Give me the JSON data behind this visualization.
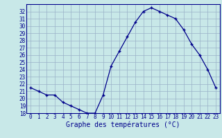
{
  "hours": [
    0,
    1,
    2,
    3,
    4,
    5,
    6,
    7,
    8,
    9,
    10,
    11,
    12,
    13,
    14,
    15,
    16,
    17,
    18,
    19,
    20,
    21,
    22,
    23
  ],
  "temps": [
    21.5,
    21.0,
    20.5,
    20.5,
    19.5,
    19.0,
    18.5,
    18.0,
    18.0,
    20.5,
    24.5,
    26.5,
    28.5,
    30.5,
    32.0,
    32.5,
    32.0,
    31.5,
    31.0,
    29.5,
    27.5,
    26.0,
    24.0,
    21.5
  ],
  "ylim": [
    18,
    33
  ],
  "yticks": [
    18,
    19,
    20,
    21,
    22,
    23,
    24,
    25,
    26,
    27,
    28,
    29,
    30,
    31,
    32
  ],
  "xticks": [
    0,
    1,
    2,
    3,
    4,
    5,
    6,
    7,
    8,
    9,
    10,
    11,
    12,
    13,
    14,
    15,
    16,
    17,
    18,
    19,
    20,
    21,
    22,
    23
  ],
  "line_color": "#00008B",
  "marker": "+",
  "bg_color": "#c8e8e8",
  "grid_color": "#9ab0c8",
  "xlabel": "Graphe des températures (°C)",
  "xlabel_fontsize": 7,
  "ytick_fontsize": 5.5,
  "xtick_fontsize": 5.5
}
